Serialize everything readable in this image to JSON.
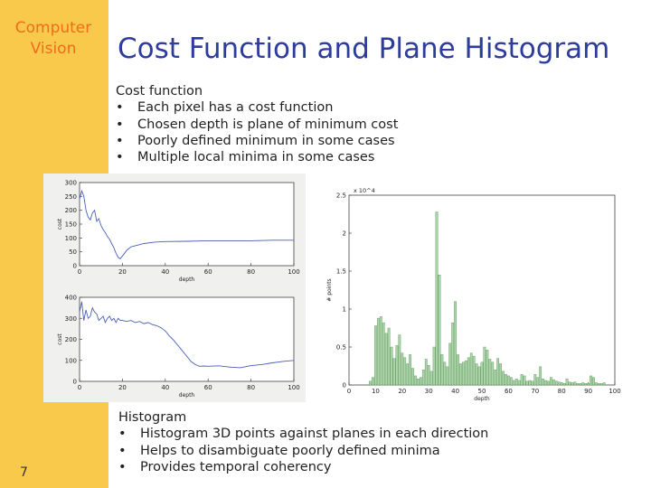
{
  "sidebar": {
    "brand_line1": "Computer",
    "brand_line2": "Vision",
    "slide_number": "7"
  },
  "title": "Cost Function and Plane Histogram",
  "section1": {
    "heading": "Cost function",
    "bullets": [
      "Each pixel has a cost function",
      "Chosen depth is plane of minimum cost",
      "Poorly defined minimum in some cases",
      "Multiple local minima in some cases"
    ]
  },
  "section2": {
    "heading": "Histogram",
    "bullets": [
      "Histogram 3D points against planes in each direction",
      "Helps to disambiguate poorly defined minima",
      "Provides temporal coherency"
    ]
  },
  "colors": {
    "sidebar": "#f9c94b",
    "brand": "#f26c1a",
    "title": "#2e3c9c",
    "line": "#4a5fb5",
    "bar": "#a9d7a7"
  },
  "chart_data": [
    {
      "type": "line",
      "xlabel": "depth",
      "ylabel": "cost",
      "xlim": [
        0,
        100
      ],
      "ylim": [
        0,
        300
      ],
      "xticks": [
        "0",
        "20",
        "40",
        "60",
        "80",
        "100"
      ],
      "yticks": [
        "0",
        "50",
        "100",
        "150",
        "200",
        "250",
        "300"
      ],
      "x": [
        0,
        1,
        2,
        3,
        4,
        5,
        6,
        7,
        8,
        9,
        10,
        11,
        12,
        13,
        14,
        15,
        16,
        17,
        18,
        19,
        20,
        21,
        22,
        23,
        24,
        26,
        28,
        30,
        35,
        40,
        50,
        60,
        70,
        80,
        90,
        100
      ],
      "y": [
        240,
        270,
        250,
        200,
        175,
        165,
        190,
        200,
        160,
        170,
        145,
        130,
        120,
        105,
        95,
        80,
        65,
        45,
        30,
        25,
        35,
        45,
        55,
        62,
        68,
        72,
        76,
        80,
        85,
        87,
        88,
        90,
        90,
        90,
        92,
        92
      ]
    },
    {
      "type": "line",
      "xlabel": "depth",
      "ylabel": "cost",
      "xlim": [
        0,
        100
      ],
      "ylim": [
        0,
        400
      ],
      "xticks": [
        "0",
        "20",
        "40",
        "60",
        "80",
        "100"
      ],
      "yticks": [
        "0",
        "100",
        "200",
        "300",
        "400"
      ],
      "x": [
        0,
        1,
        2,
        3,
        4,
        5,
        6,
        7,
        8,
        9,
        10,
        11,
        12,
        13,
        14,
        15,
        16,
        17,
        18,
        19,
        20,
        22,
        24,
        26,
        28,
        30,
        32,
        34,
        36,
        38,
        40,
        42,
        44,
        46,
        48,
        50,
        52,
        54,
        56,
        58,
        60,
        65,
        70,
        75,
        80,
        85,
        90,
        95,
        100
      ],
      "y": [
        330,
        380,
        290,
        340,
        300,
        310,
        350,
        330,
        320,
        290,
        300,
        310,
        280,
        300,
        310,
        290,
        300,
        280,
        300,
        290,
        290,
        285,
        290,
        280,
        285,
        275,
        280,
        270,
        265,
        255,
        240,
        215,
        195,
        170,
        145,
        120,
        95,
        80,
        72,
        73,
        72,
        74,
        68,
        65,
        75,
        80,
        88,
        95,
        100
      ]
    },
    {
      "type": "bar",
      "xlabel": "depth",
      "ylabel": "# points",
      "multiplier": "x 10^4",
      "xlim": [
        0,
        100
      ],
      "ylim": [
        0,
        2.5
      ],
      "xticks": [
        "0",
        "10",
        "20",
        "30",
        "40",
        "50",
        "60",
        "70",
        "80",
        "90",
        "100"
      ],
      "yticks": [
        "0",
        "0.5",
        "1",
        "1.5",
        "2",
        "2.5"
      ],
      "x": [
        8,
        9,
        10,
        11,
        12,
        13,
        14,
        15,
        16,
        17,
        18,
        19,
        20,
        21,
        22,
        23,
        24,
        25,
        26,
        27,
        28,
        29,
        30,
        31,
        32,
        33,
        34,
        35,
        36,
        37,
        38,
        39,
        40,
        41,
        42,
        43,
        44,
        45,
        46,
        47,
        48,
        49,
        50,
        51,
        52,
        53,
        54,
        55,
        56,
        57,
        58,
        59,
        60,
        61,
        62,
        63,
        64,
        65,
        66,
        67,
        68,
        69,
        70,
        71,
        72,
        73,
        74,
        75,
        76,
        77,
        78,
        79,
        80,
        81,
        82,
        83,
        84,
        85,
        86,
        87,
        88,
        89,
        90,
        91,
        92,
        93,
        94,
        95,
        96
      ],
      "values": [
        0.05,
        0.1,
        0.78,
        0.88,
        0.9,
        0.82,
        0.68,
        0.75,
        0.5,
        0.35,
        0.52,
        0.66,
        0.42,
        0.36,
        0.28,
        0.4,
        0.22,
        0.12,
        0.08,
        0.1,
        0.2,
        0.34,
        0.26,
        0.18,
        0.5,
        2.28,
        1.45,
        0.4,
        0.3,
        0.24,
        0.55,
        0.82,
        1.1,
        0.4,
        0.28,
        0.3,
        0.32,
        0.36,
        0.42,
        0.38,
        0.28,
        0.24,
        0.3,
        0.5,
        0.46,
        0.34,
        0.3,
        0.2,
        0.35,
        0.28,
        0.18,
        0.14,
        0.12,
        0.1,
        0.06,
        0.08,
        0.06,
        0.14,
        0.12,
        0.05,
        0.06,
        0.05,
        0.14,
        0.1,
        0.24,
        0.08,
        0.06,
        0.05,
        0.1,
        0.07,
        0.05,
        0.04,
        0.03,
        0.02,
        0.08,
        0.04,
        0.03,
        0.04,
        0.02,
        0.02,
        0.03,
        0.02,
        0.02,
        0.12,
        0.1,
        0.03,
        0.02,
        0.02,
        0.03
      ]
    }
  ]
}
